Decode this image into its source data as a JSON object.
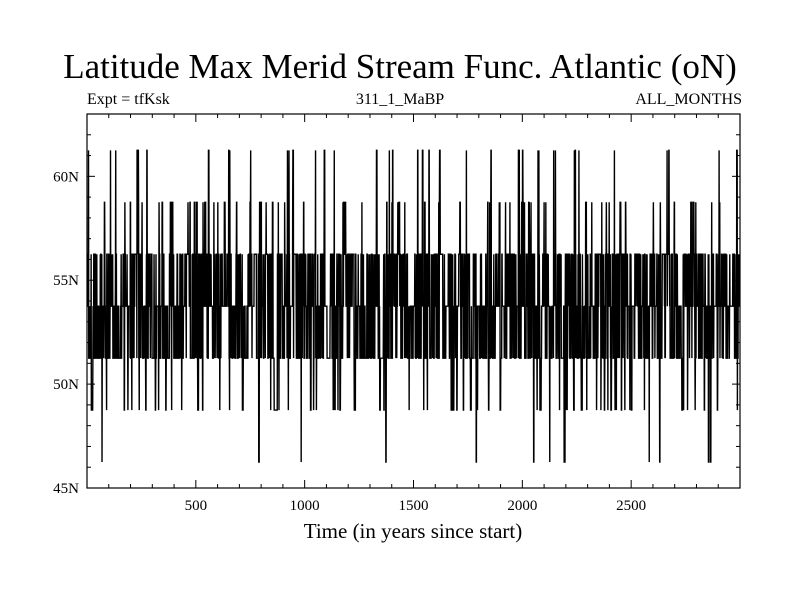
{
  "chart_data": {
    "type": "line",
    "title": "Latitude Max Merid Stream Func. Atlantic (oN)",
    "subtitle_left": "Expt = tfKsk",
    "subtitle_center": "311_1_MaBP",
    "subtitle_right": "ALL_MONTHS",
    "xlabel": "Time (in years since start)",
    "ylabel": "",
    "xlim": [
      0,
      3000
    ],
    "ylim": [
      45,
      63
    ],
    "x_ticks": [
      500,
      1000,
      1500,
      2000,
      2500
    ],
    "x_tick_labels": [
      "500",
      "1000",
      "1500",
      "2000",
      "2500"
    ],
    "y_ticks": [
      45,
      50,
      55,
      60
    ],
    "y_tick_labels": [
      "45N",
      "50N",
      "55N",
      "60N"
    ],
    "levels": [
      46.25,
      48.75,
      51.25,
      53.75,
      56.25,
      58.75,
      61.25
    ],
    "grid": false,
    "series": [
      {
        "x_start": 1,
        "x_end": 3000,
        "seed": 7
      }
    ]
  },
  "colors": {
    "line": "#000000",
    "axis": "#000000",
    "background": "#ffffff"
  }
}
